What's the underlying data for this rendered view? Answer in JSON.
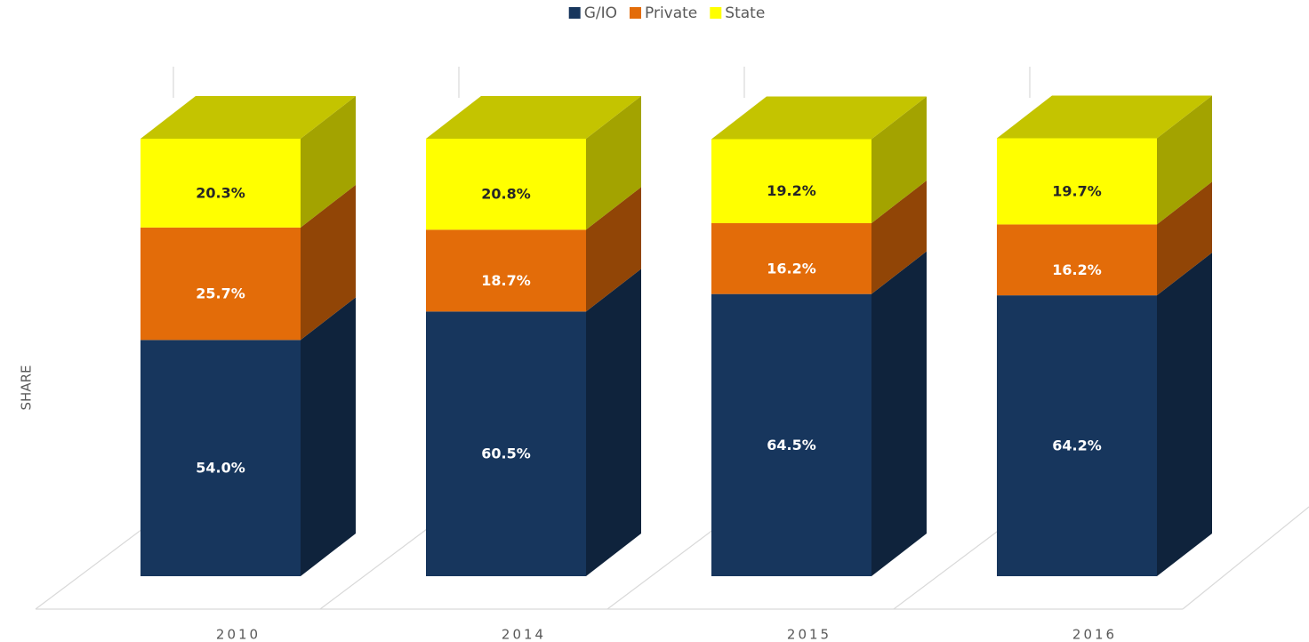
{
  "chart_data": {
    "type": "bar3d_stacked",
    "y_label": "SHARE",
    "categories": [
      "2010",
      "2014",
      "2015",
      "2016"
    ],
    "series": [
      {
        "name": "G/IO",
        "color": "#17365d",
        "values": [
          54.0,
          60.5,
          64.5,
          64.2
        ],
        "value_labels": [
          "54.0%",
          "60.5%",
          "64.5%",
          "64.2%"
        ]
      },
      {
        "name": "Private",
        "color": "#e36c09",
        "values": [
          25.7,
          18.7,
          16.2,
          16.2
        ],
        "value_labels": [
          "25.7%",
          "18.7%",
          "16.2%",
          "16.2%"
        ]
      },
      {
        "name": "State",
        "color": "#ffff00",
        "values": [
          20.3,
          20.8,
          19.2,
          19.7
        ],
        "value_labels": [
          "20.3%",
          "20.8%",
          "19.2%",
          "19.7%"
        ]
      }
    ],
    "ylim": [
      0,
      100
    ],
    "legend": "top"
  }
}
